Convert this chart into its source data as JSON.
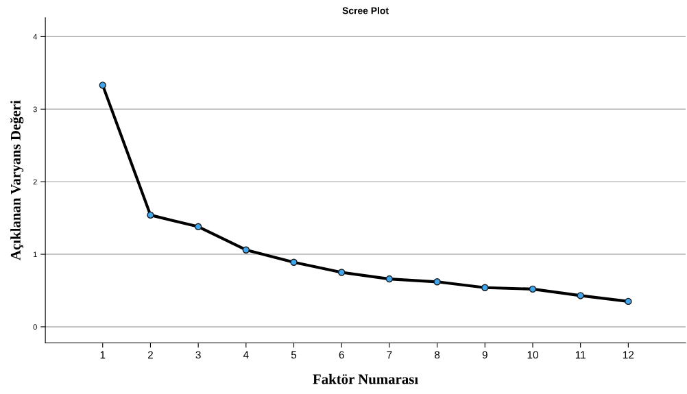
{
  "chart_data": {
    "type": "line",
    "title": "Scree Plot",
    "xlabel": "Faktör Numarası",
    "ylabel": "Açıklanan Varyans Değeri",
    "categories": [
      "1",
      "2",
      "3",
      "4",
      "5",
      "6",
      "7",
      "8",
      "9",
      "10",
      "11",
      "12"
    ],
    "series": [
      {
        "color": "#000000",
        "values": [
          3.33,
          1.54,
          1.38,
          1.06,
          0.89,
          0.75,
          0.66,
          0.62,
          0.54,
          0.52,
          0.43,
          0.35
        ]
      }
    ],
    "marker": "circle",
    "line_style": "solid",
    "ylim": [
      -0.22,
      4.26
    ],
    "yticks": [
      0,
      1,
      2,
      3,
      4
    ],
    "grid": "y",
    "legend": false
  }
}
